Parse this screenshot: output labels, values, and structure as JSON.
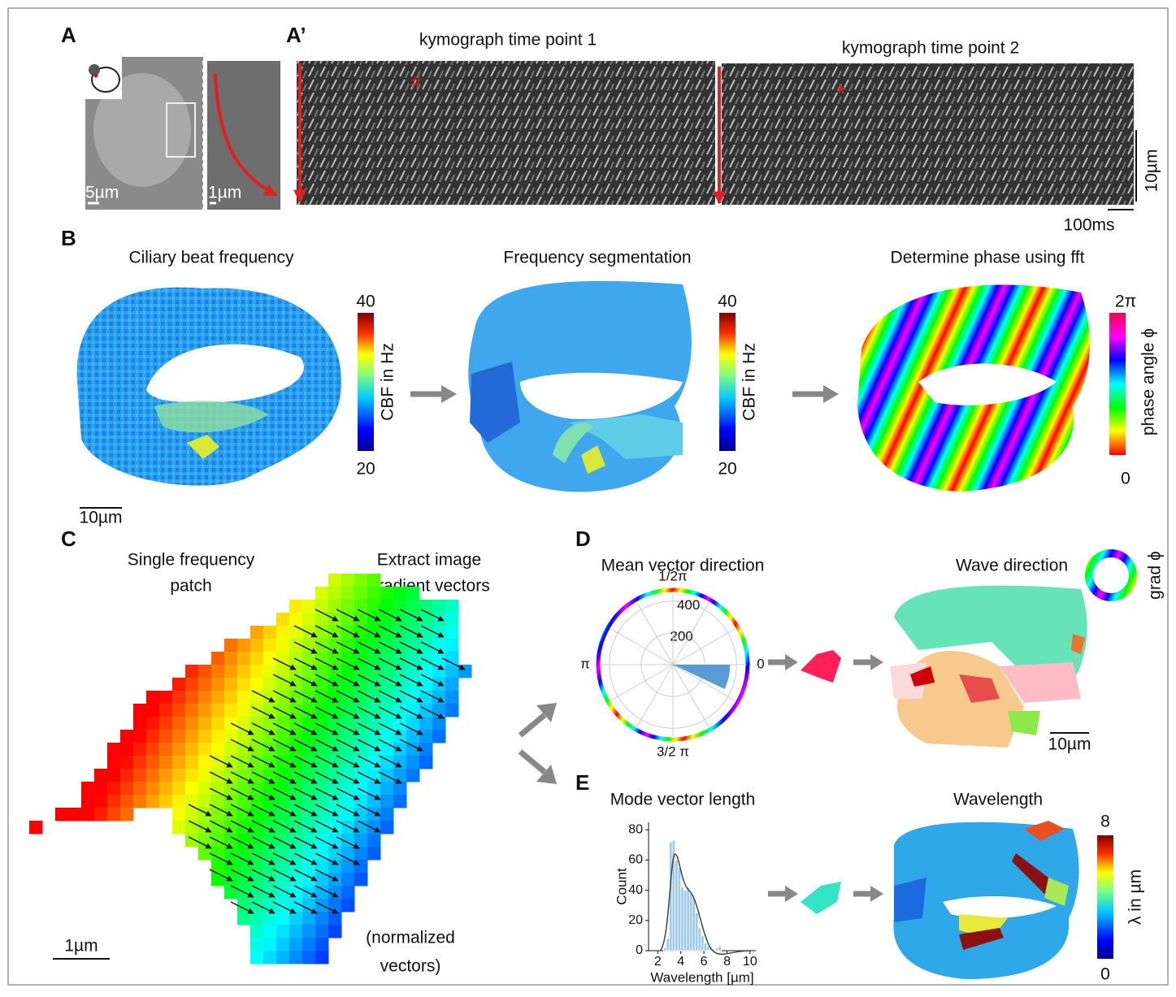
{
  "panel_labels": [
    "A",
    "A’",
    "B",
    "C",
    "D",
    "E"
  ],
  "A": {
    "scale_bars": [
      "5µm",
      "1µm"
    ]
  },
  "A_prime": {
    "titles": [
      "kymograph time point 1",
      "kymograph time point 2"
    ],
    "markers": [
      "#",
      "*"
    ],
    "scale_bars": [
      "10µm",
      "100ms"
    ]
  },
  "B": {
    "titles": [
      "Ciliary beat frequency",
      "Frequency segmentation",
      "Determine phase using fft"
    ],
    "cbf_colorbar": {
      "max": 40,
      "min": 20,
      "label": "CBF in Hz"
    },
    "phase_colorbar": {
      "max": "2π",
      "min": 0,
      "label": "phase angle ϕ"
    },
    "scale_bar": "10µm"
  },
  "C": {
    "titles": [
      [
        "Single frequency",
        "patch"
      ],
      [
        "Extract image",
        "gradient vectors"
      ]
    ],
    "note": [
      "(normalized",
      "vectors)"
    ],
    "scale_bar": "1µm"
  },
  "D": {
    "titles": [
      "Mean vector direction",
      "Wave direction"
    ],
    "wheel_label": "grad ϕ",
    "scale_bar": "10µm",
    "polar": {
      "rlim": [
        0,
        450
      ],
      "rticks": [
        200,
        400
      ],
      "angle_ticks": [
        0,
        {
          "value": 1.5708,
          "label": "1/2π"
        },
        {
          "value": 3.1416,
          "label": "π"
        },
        {
          "value": 4.7124,
          "label": "3/2 π"
        }
      ],
      "bin_edges": [
        -0.44,
        0
      ],
      "counts": [
        360
      ],
      "color": "#5b9bd5"
    }
  },
  "E": {
    "titles": [
      "Mode vector length",
      "Wavelength"
    ],
    "histogram": {
      "type": "histogram",
      "x_label": "Wavelength [µm]",
      "y_label": "Count",
      "xlim": [
        1.2,
        10.5
      ],
      "xticks": [
        2,
        4,
        6,
        8,
        10
      ],
      "ylim": [
        0,
        85
      ],
      "yticks": [
        0,
        20,
        40,
        60,
        80
      ],
      "bins": [
        2.5,
        2.75,
        3.0,
        3.25,
        3.5,
        3.75,
        4.0,
        4.25,
        4.5,
        4.75,
        5.0,
        5.25,
        5.5,
        5.75,
        6.0,
        6.25,
        6.5,
        6.75,
        7.0,
        7.25,
        7.5
      ],
      "counts": [
        2,
        8,
        72,
        73,
        60,
        55,
        42,
        40,
        42,
        38,
        35,
        25,
        15,
        10,
        5,
        3,
        2,
        1,
        2,
        3
      ],
      "color": "#9dc8ef"
    },
    "lambda_colorbar": {
      "max": 8,
      "min": 0,
      "label": "λ in µm"
    }
  }
}
